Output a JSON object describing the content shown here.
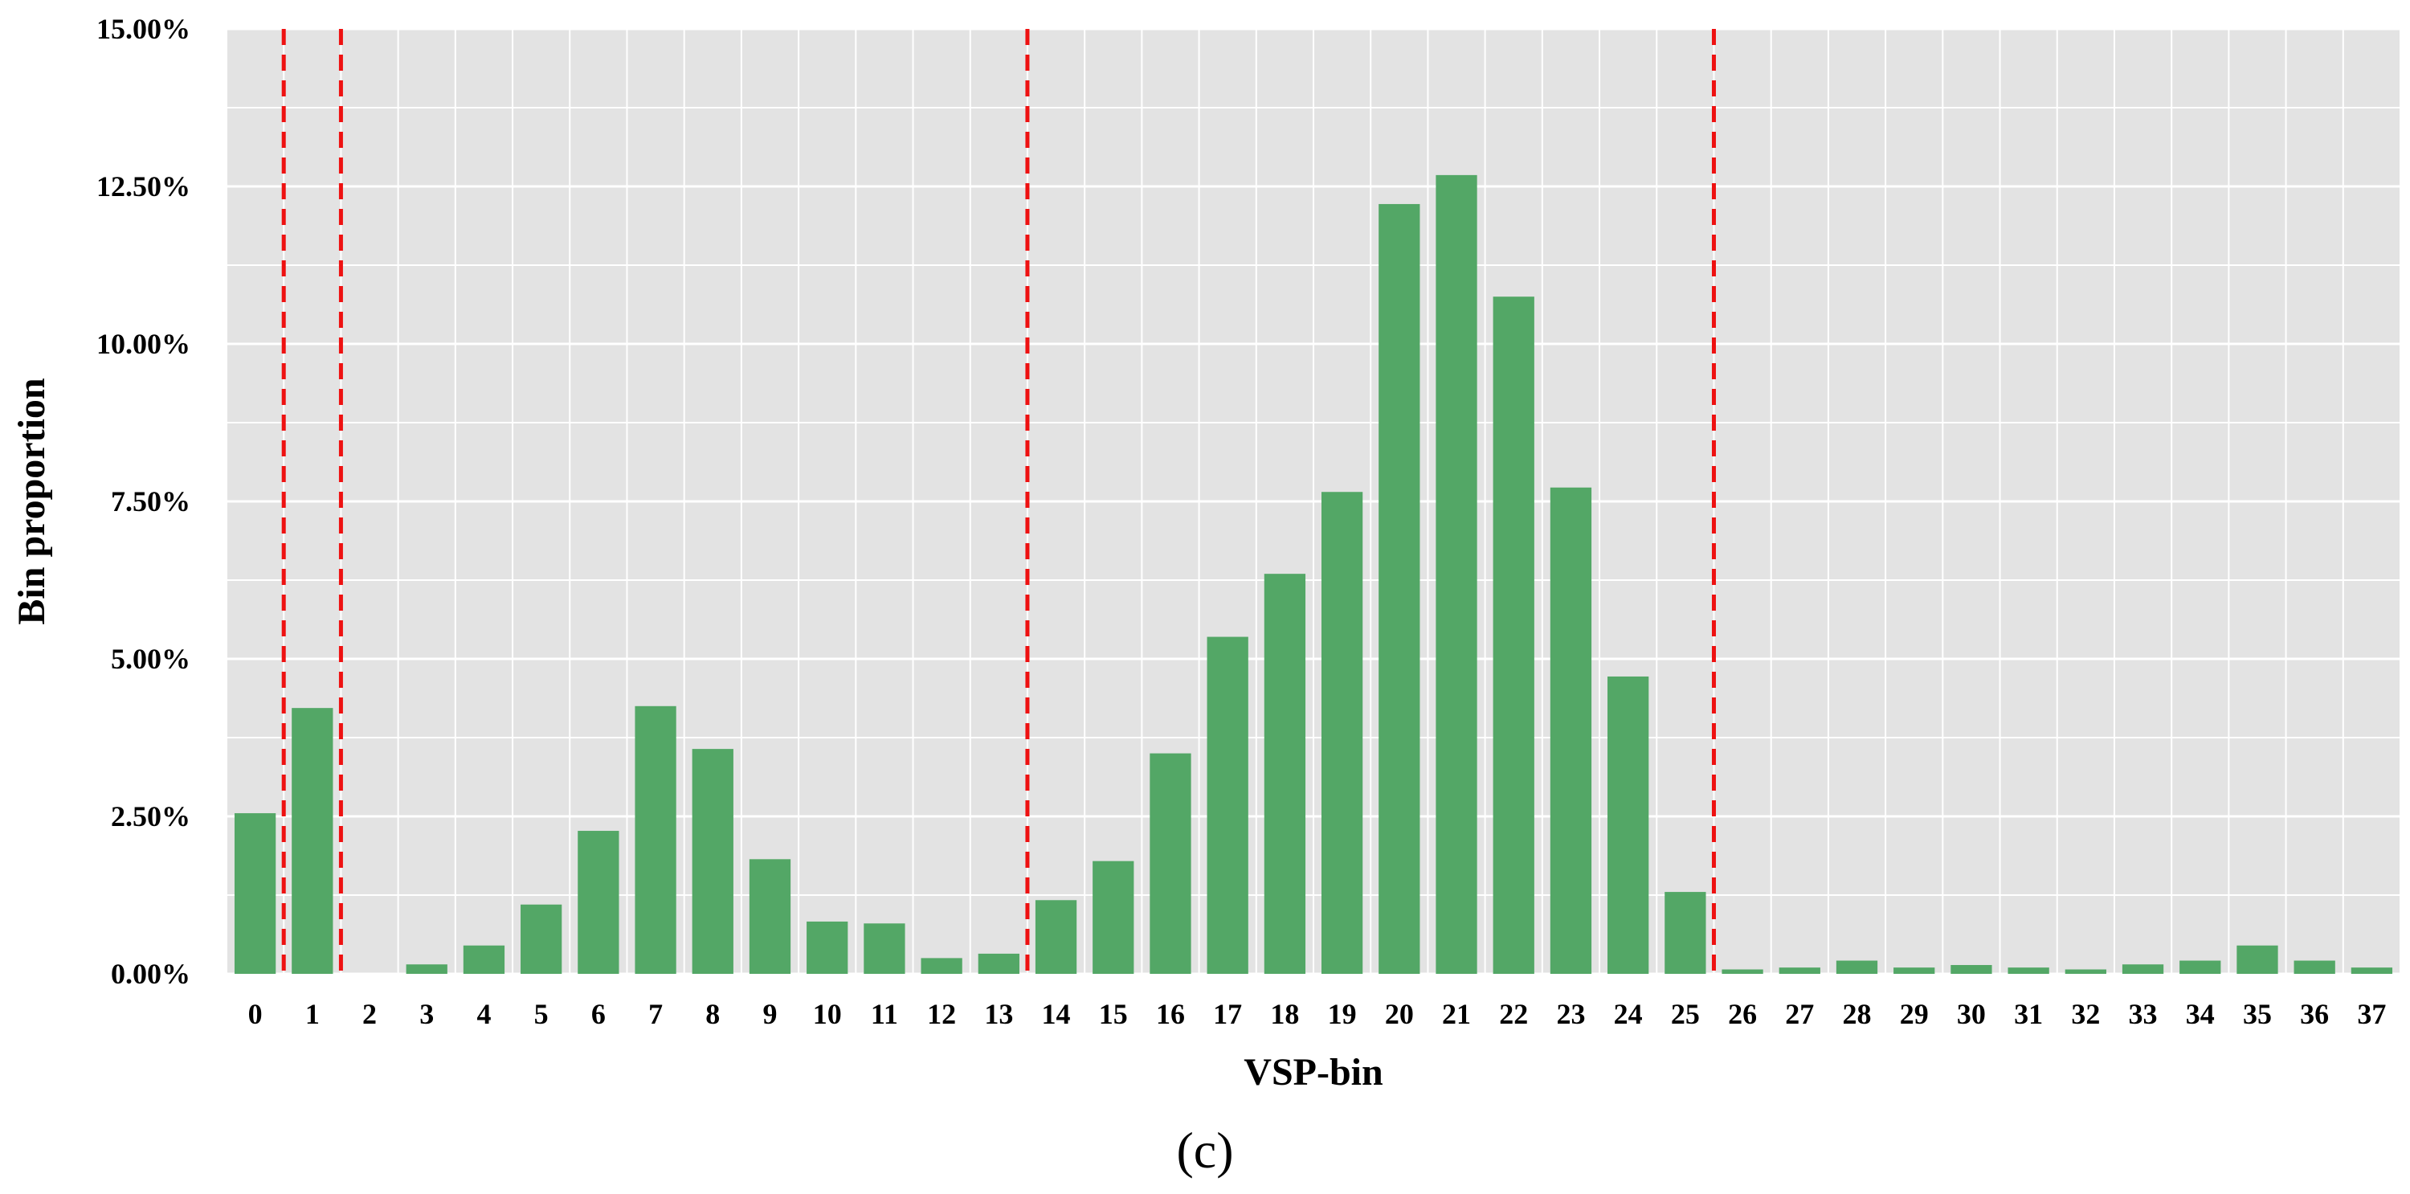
{
  "caption": "(c)",
  "colors": {
    "plot_background": "#e3e3e3",
    "gridline": "#ffffff",
    "bar": "#53a766",
    "marker_line": "#ee1111"
  },
  "chart_data": {
    "type": "bar",
    "title": "",
    "xlabel": "VSP-bin",
    "ylabel": "Bin proportion",
    "ylim": [
      0,
      15
    ],
    "y_ticks": [
      0,
      2.5,
      5,
      7.5,
      10,
      12.5,
      15
    ],
    "y_tick_labels": [
      "0.00%",
      "2.50%",
      "5.00%",
      "7.50%",
      "10.00%",
      "12.50%",
      "15.00%"
    ],
    "y_minor_gridlines": [
      1.25,
      3.75,
      6.25,
      8.75,
      11.25,
      13.75
    ],
    "grid": true,
    "categories": [
      "0",
      "1",
      "2",
      "3",
      "4",
      "5",
      "6",
      "7",
      "8",
      "9",
      "10",
      "11",
      "12",
      "13",
      "14",
      "15",
      "16",
      "17",
      "18",
      "19",
      "20",
      "21",
      "22",
      "23",
      "24",
      "25",
      "26",
      "27",
      "28",
      "29",
      "30",
      "31",
      "32",
      "33",
      "34",
      "35",
      "36",
      "37"
    ],
    "values": [
      2.55,
      4.22,
      0.0,
      0.15,
      0.45,
      1.1,
      2.27,
      4.25,
      3.57,
      1.82,
      0.83,
      0.8,
      0.25,
      0.32,
      1.17,
      1.79,
      3.5,
      5.35,
      6.35,
      7.65,
      12.22,
      12.68,
      10.75,
      7.72,
      4.72,
      1.3,
      0.07,
      0.1,
      0.21,
      0.1,
      0.14,
      0.1,
      0.07,
      0.15,
      0.21,
      0.45,
      0.21,
      0.1
    ],
    "value_format": "percent",
    "vertical_markers": [
      {
        "between": [
          "0",
          "1"
        ],
        "style": "dashed"
      },
      {
        "between": [
          "1",
          "2"
        ],
        "style": "dashed"
      },
      {
        "between": [
          "13",
          "14"
        ],
        "style": "dashed"
      },
      {
        "between": [
          "25",
          "26"
        ],
        "style": "dashed"
      }
    ]
  }
}
